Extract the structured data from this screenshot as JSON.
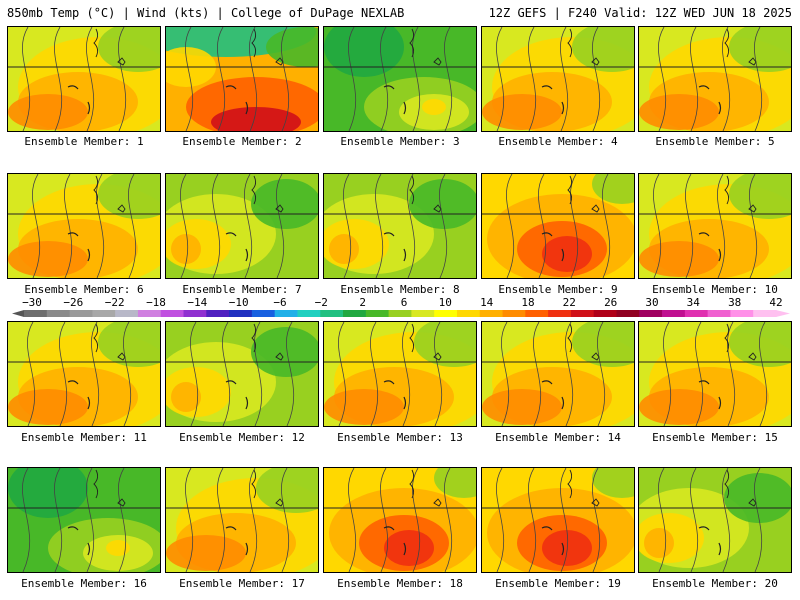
{
  "header": {
    "left": "850mb Temp (°C) | Wind (kts) | College of DuPage NEXLAB",
    "right": "12Z GEFS | F240 Valid: 12Z WED JUN 18 2025"
  },
  "members": [
    {
      "label": "Ensemble Member: 1",
      "scheme": "warm"
    },
    {
      "label": "Ensemble Member: 2",
      "scheme": "hot-cool-north"
    },
    {
      "label": "Ensemble Member: 3",
      "scheme": "cool"
    },
    {
      "label": "Ensemble Member: 4",
      "scheme": "warm"
    },
    {
      "label": "Ensemble Member: 5",
      "scheme": "warm"
    },
    {
      "label": "Ensemble Member: 6",
      "scheme": "warm"
    },
    {
      "label": "Ensemble Member: 7",
      "scheme": "mixed"
    },
    {
      "label": "Ensemble Member: 8",
      "scheme": "mixed"
    },
    {
      "label": "Ensemble Member: 9",
      "scheme": "hot"
    },
    {
      "label": "Ensemble Member: 10",
      "scheme": "warm"
    },
    {
      "label": "Ensemble Member: 11",
      "scheme": "warm"
    },
    {
      "label": "Ensemble Member: 12",
      "scheme": "mixed"
    },
    {
      "label": "Ensemble Member: 13",
      "scheme": "warm"
    },
    {
      "label": "Ensemble Member: 14",
      "scheme": "warm"
    },
    {
      "label": "Ensemble Member: 15",
      "scheme": "warm"
    },
    {
      "label": "Ensemble Member: 16",
      "scheme": "cool"
    },
    {
      "label": "Ensemble Member: 17",
      "scheme": "warm"
    },
    {
      "label": "Ensemble Member: 18",
      "scheme": "hot"
    },
    {
      "label": "Ensemble Member: 19",
      "scheme": "hot"
    },
    {
      "label": "Ensemble Member: 20",
      "scheme": "mixed"
    }
  ],
  "colorbar": {
    "labels": [
      "−30",
      "−26",
      "−22",
      "−18",
      "−14",
      "−10",
      "−6",
      "−2",
      "2",
      "6",
      "10",
      "14",
      "18",
      "22",
      "26",
      "30",
      "34",
      "38",
      "42"
    ],
    "colors": [
      "#6e6e6e",
      "#8a8a8a",
      "#9a9a9a",
      "#a8a8a8",
      "#b8b8c8",
      "#d080e0",
      "#c050e0",
      "#9030d0",
      "#5020c0",
      "#2030c0",
      "#1860e0",
      "#20b0e8",
      "#20d0c0",
      "#20c080",
      "#20a840",
      "#48b828",
      "#98d020",
      "#d8e820",
      "#ffff00",
      "#ffd800",
      "#ffb000",
      "#ff8c00",
      "#ff6000",
      "#f03010",
      "#d01018",
      "#b00018",
      "#900020",
      "#a00060",
      "#c01090",
      "#e030b0",
      "#f060d0",
      "#ff90e8",
      "#ffc0f0"
    ]
  }
}
